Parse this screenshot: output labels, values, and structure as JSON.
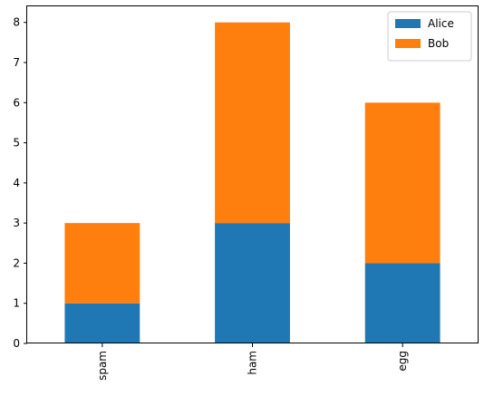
{
  "chart_data": {
    "type": "bar",
    "stacked": true,
    "categories": [
      "spam",
      "ham",
      "egg"
    ],
    "series": [
      {
        "name": "Alice",
        "values": [
          1,
          3,
          2
        ],
        "color": "#1f77b4"
      },
      {
        "name": "Bob",
        "values": [
          2,
          5,
          4
        ],
        "color": "#ff7f0e"
      }
    ],
    "ylim": [
      0,
      8.4
    ],
    "yticks": [
      "0",
      "1",
      "2",
      "3",
      "4",
      "5",
      "6",
      "7",
      "8"
    ],
    "grid": false,
    "legend_position": "top-right",
    "xtick_rotation": "vertical"
  }
}
